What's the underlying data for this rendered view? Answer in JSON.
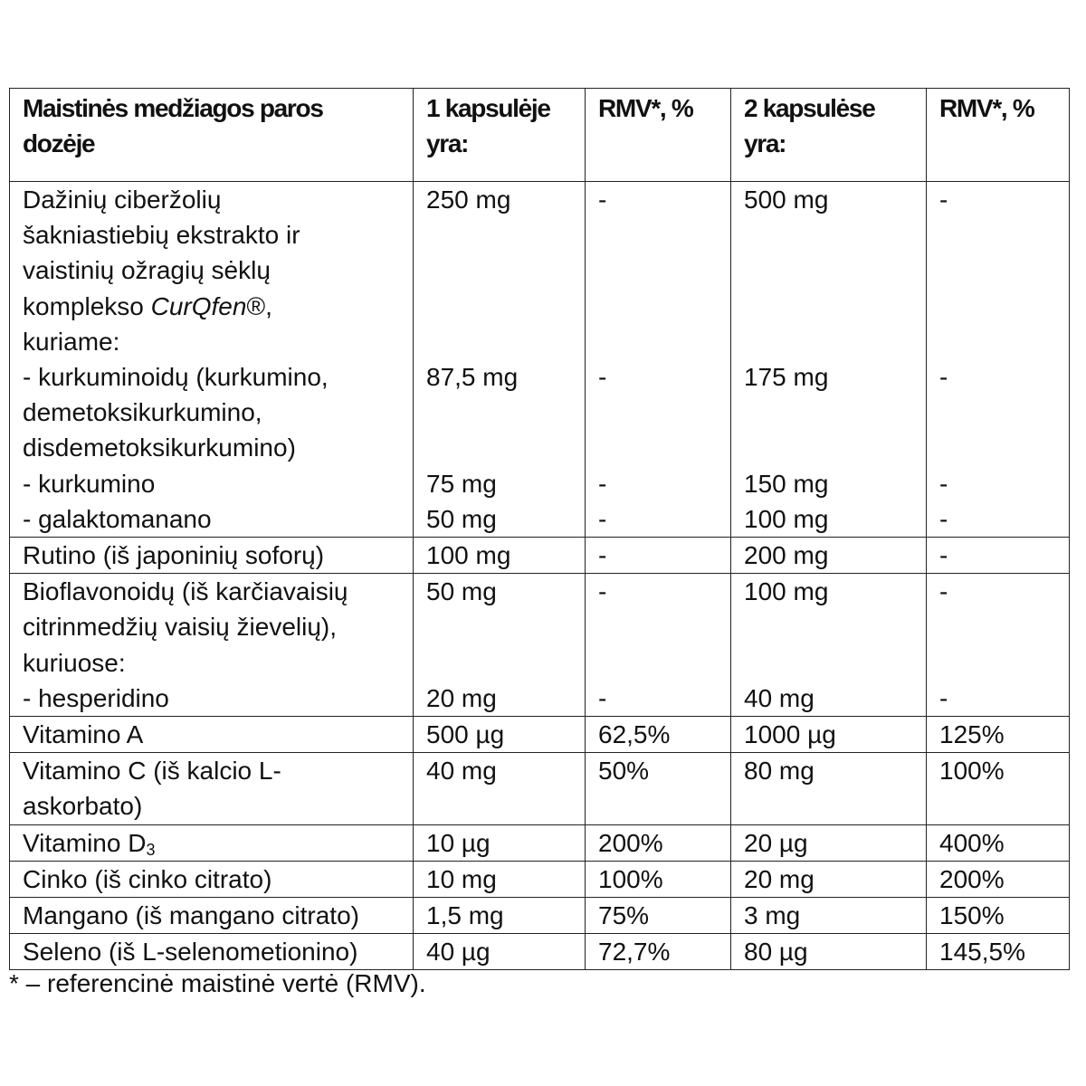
{
  "table": {
    "headers": {
      "name_line1": "Maistinės medžiagos paros",
      "name_line2": "dozėje",
      "one_caps_line1": "1 kapsulėje",
      "one_caps_line2": "yra:",
      "rmv1": "RMV*, %",
      "two_caps_line1": "2 kapsulėse",
      "two_caps_line2": "yra:",
      "rmv2": "RMV*, %"
    },
    "curcuma": {
      "name_l1": "Dažinių ciberžolių",
      "name_l2": "šakniastiebių ekstrakto ir",
      "name_l3": "vaistinių ožragių sėklų",
      "name_l4_prefix": "komplekso ",
      "name_l4_brand": "CurQfen",
      "name_l4_suffix": "®,",
      "name_l5": "kuriame:",
      "one": "250 mg",
      "rmv1": "-",
      "two": "500 mg",
      "rmv2": "-",
      "sub1_l1": "- kurkuminoidų (kurkumino,",
      "sub1_l2": "demetoksikurkumino,",
      "sub1_l3": "disdemetoksikurkumino)",
      "sub1_one": "87,5 mg",
      "sub1_rmv1": "-",
      "sub1_two": "175 mg",
      "sub1_rmv2": "-",
      "sub2": "- kurkumino",
      "sub2_one": "75 mg",
      "sub2_rmv1": "-",
      "sub2_two": "150 mg",
      "sub2_rmv2": "-",
      "sub3": "- galaktomanano",
      "sub3_one": "50 mg",
      "sub3_rmv1": "-",
      "sub3_two": "100 mg",
      "sub3_rmv2": "-"
    },
    "rutin": {
      "name": "Rutino (iš japoninių soforų)",
      "one": "100 mg",
      "rmv1": "-",
      "two": "200 mg",
      "rmv2": "-"
    },
    "bioflav": {
      "name_l1": "Bioflavonoidų (iš karčiavaisių",
      "name_l2": "citrinmedžių vaisių žievelių),",
      "name_l3": "kuriuose:",
      "one": "50 mg",
      "rmv1": "-",
      "two": "100 mg",
      "rmv2": "-",
      "sub_name": "- hesperidino",
      "sub_one": "20 mg",
      "sub_rmv1": "-",
      "sub_two": "40 mg",
      "sub_rmv2": "-"
    },
    "vitA": {
      "name": "Vitamino A",
      "one": "500 µg",
      "rmv1": "62,5%",
      "two": "1000 µg",
      "rmv2": "125%"
    },
    "vitC": {
      "name_l1": "Vitamino C (iš kalcio L-",
      "name_l2": "askorbato)",
      "one": "40 mg",
      "rmv1": "50%",
      "two": "80 mg",
      "rmv2": "100%"
    },
    "vitD": {
      "name": "Vitamino D",
      "name_sub": "3",
      "one": "10 µg",
      "rmv1": "200%",
      "two": "20 µg",
      "rmv2": "400%"
    },
    "zinc": {
      "name": "Cinko (iš cinko citrato)",
      "one": "10 mg",
      "rmv1": "100%",
      "two": "20 mg",
      "rmv2": "200%"
    },
    "manganese": {
      "name": "Mangano (iš mangano citrato)",
      "one": "1,5 mg",
      "rmv1": "75%",
      "two": "3 mg",
      "rmv2": "150%"
    },
    "selenium": {
      "name": "Seleno (iš L-selenometionino)",
      "one": "40 µg",
      "rmv1": "72,7%",
      "two": "80 µg",
      "rmv2": "145,5%"
    }
  },
  "footnote": "* – referencinė maistinė vertė (RMV)."
}
